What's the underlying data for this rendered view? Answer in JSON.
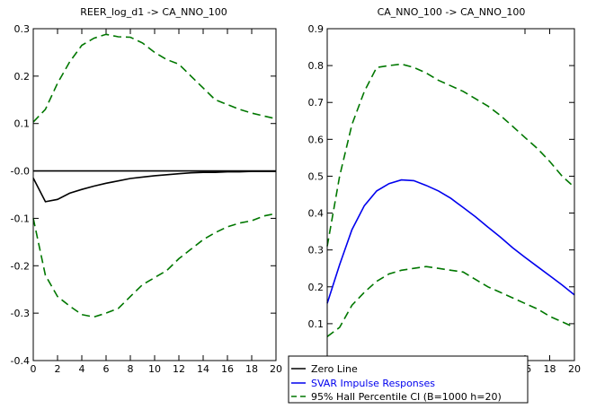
{
  "chart_data": [
    {
      "type": "line",
      "title": "REER_log_d1 -> CA_NNO_100",
      "xlim": [
        0,
        20
      ],
      "ylim": [
        -0.4,
        0.3
      ],
      "x_ticks": [
        0,
        2,
        4,
        6,
        8,
        10,
        12,
        14,
        16,
        18,
        20
      ],
      "x_tick_labels": [
        "0",
        "2",
        "4",
        "6",
        "8",
        "10",
        "12",
        "14",
        "16",
        "18",
        "20"
      ],
      "y_ticks": [
        -0.4,
        -0.3,
        -0.2,
        -0.1,
        0.0,
        0.1,
        0.2,
        0.3
      ],
      "y_tick_labels": [
        "-0.4",
        "-0.3",
        "-0.2",
        "-0.1",
        "-0.0",
        "0.1",
        "0.2",
        "0.3"
      ],
      "x": [
        0,
        1,
        2,
        3,
        4,
        5,
        6,
        7,
        8,
        9,
        10,
        11,
        12,
        13,
        14,
        15,
        16,
        17,
        18,
        19,
        20
      ],
      "series": [
        {
          "key": "zero",
          "color": "#000000",
          "style": "solid",
          "values": [
            0,
            0,
            0,
            0,
            0,
            0,
            0,
            0,
            0,
            0,
            0,
            0,
            0,
            0,
            0,
            0,
            0,
            0,
            0,
            0,
            0
          ]
        },
        {
          "key": "irf",
          "color": "#000000",
          "style": "solid",
          "values": [
            -0.015,
            -0.065,
            -0.06,
            -0.047,
            -0.039,
            -0.032,
            -0.026,
            -0.021,
            -0.016,
            -0.013,
            -0.01,
            -0.008,
            -0.006,
            -0.004,
            -0.003,
            -0.003,
            -0.002,
            -0.002,
            -0.001,
            -0.001,
            -0.001
          ]
        },
        {
          "key": "ci_upper",
          "color": "#007700",
          "style": "dashed",
          "values": [
            0.103,
            0.13,
            0.185,
            0.23,
            0.265,
            0.28,
            0.288,
            0.283,
            0.282,
            0.27,
            0.25,
            0.235,
            0.225,
            0.2,
            0.175,
            0.15,
            0.14,
            0.13,
            0.122,
            0.116,
            0.11
          ]
        },
        {
          "key": "ci_lower",
          "color": "#007700",
          "style": "dashed",
          "values": [
            -0.1,
            -0.22,
            -0.265,
            -0.285,
            -0.303,
            -0.308,
            -0.3,
            -0.29,
            -0.265,
            -0.24,
            -0.225,
            -0.21,
            -0.185,
            -0.165,
            -0.145,
            -0.13,
            -0.118,
            -0.11,
            -0.105,
            -0.095,
            -0.09
          ]
        }
      ]
    },
    {
      "type": "line",
      "title": "CA_NNO_100 -> CA_NNO_100",
      "xlim": [
        0,
        20
      ],
      "ylim": [
        0,
        0.9
      ],
      "x_ticks": [
        16,
        18,
        20
      ],
      "x_tick_labels": [
        "16",
        "18",
        "20"
      ],
      "y_ticks": [
        0,
        0.1,
        0.2,
        0.3,
        0.4,
        0.5,
        0.6,
        0.7,
        0.8,
        0.9
      ],
      "y_tick_labels": [
        "0.0",
        "0.1",
        "0.2",
        "0.3",
        "0.4",
        "0.5",
        "0.6",
        "0.7",
        "0.8",
        "0.9"
      ],
      "x": [
        0,
        1,
        2,
        3,
        4,
        5,
        6,
        7,
        8,
        9,
        10,
        11,
        12,
        13,
        14,
        15,
        16,
        17,
        18,
        19,
        20
      ],
      "series": [
        {
          "key": "irf",
          "color": "#0000ee",
          "style": "solid",
          "values": [
            0.155,
            0.26,
            0.355,
            0.42,
            0.46,
            0.48,
            0.49,
            0.488,
            0.475,
            0.46,
            0.44,
            0.415,
            0.39,
            0.362,
            0.335,
            0.306,
            0.28,
            0.255,
            0.23,
            0.205,
            0.178
          ]
        },
        {
          "key": "ci_upper",
          "color": "#007700",
          "style": "dashed",
          "values": [
            0.31,
            0.5,
            0.64,
            0.73,
            0.795,
            0.8,
            0.804,
            0.795,
            0.78,
            0.76,
            0.745,
            0.73,
            0.71,
            0.69,
            0.665,
            0.635,
            0.605,
            0.575,
            0.54,
            0.5,
            0.47
          ]
        },
        {
          "key": "ci_lower",
          "color": "#007700",
          "style": "dashed",
          "values": [
            0.065,
            0.09,
            0.15,
            0.185,
            0.215,
            0.235,
            0.245,
            0.25,
            0.255,
            0.25,
            0.245,
            0.24,
            0.22,
            0.2,
            0.185,
            0.17,
            0.155,
            0.14,
            0.12,
            0.105,
            0.09
          ]
        }
      ]
    }
  ],
  "legend": {
    "placement": "bottom-center",
    "entries": [
      {
        "label": "Zero Line",
        "color": "#000000",
        "style": "solid"
      },
      {
        "label": "SVAR Impulse Responses",
        "color": "#0000ee",
        "style": "solid"
      },
      {
        "label": "95% Hall Percentile CI (B=1000 h=20)",
        "color": "#007700",
        "style": "dashed"
      }
    ]
  }
}
